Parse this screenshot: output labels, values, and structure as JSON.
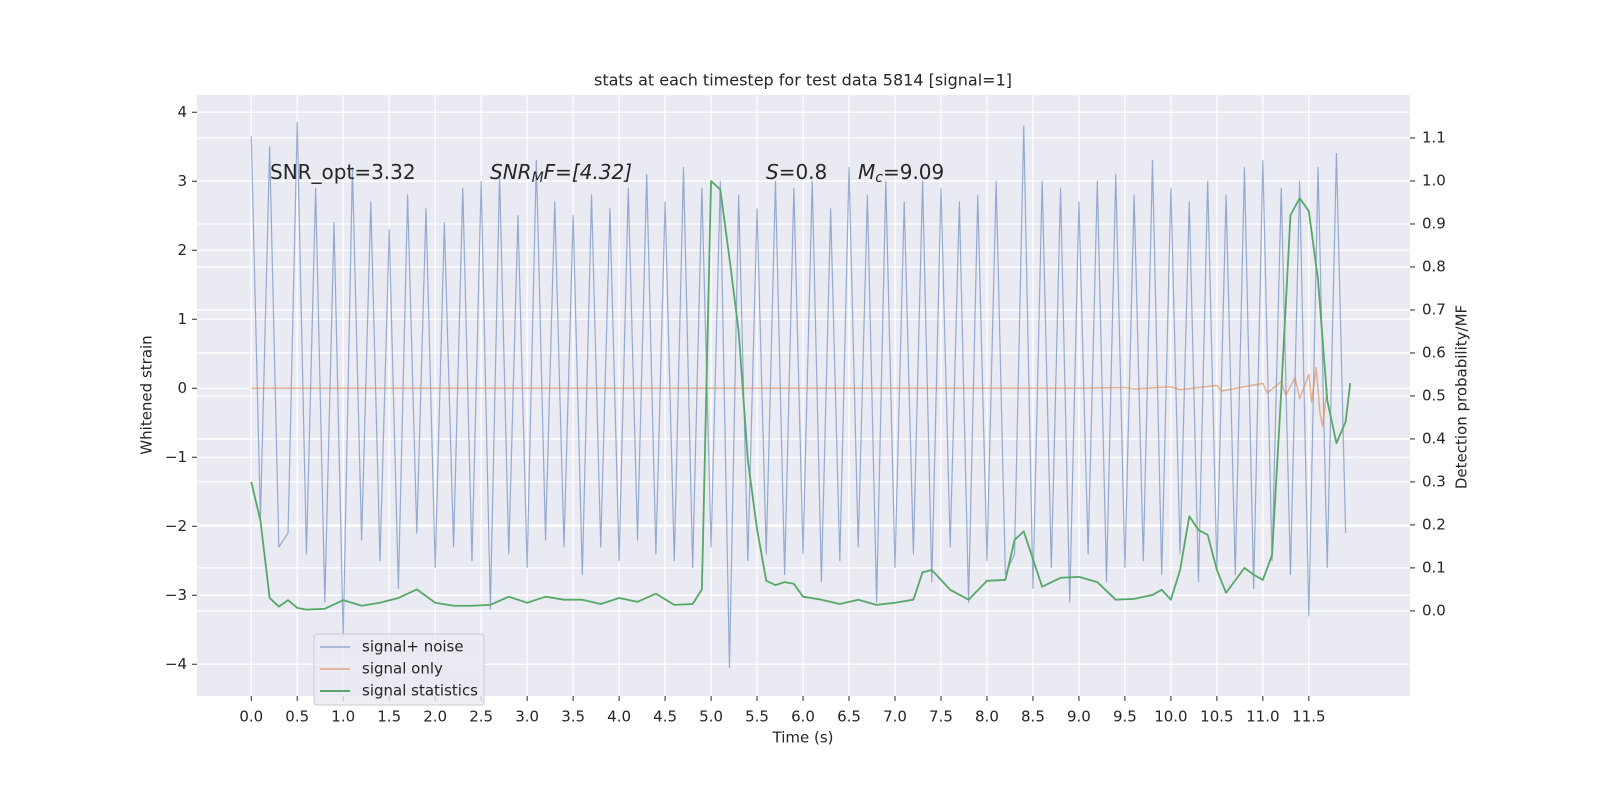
{
  "chart_data": {
    "type": "line",
    "title": "stats at each timestep for test data 5814 [signal=1]",
    "x_label": "Time (s)",
    "y_label": "Whitened strain",
    "y2_label": "Detection probability/MF",
    "annotations": [
      [
        "SNR_opt=3.32"
      ],
      [
        "SNR",
        "M",
        "F=[4.32]"
      ],
      [
        "S",
        "=0.8"
      ],
      [
        "M",
        "c",
        "=9.09"
      ]
    ],
    "xlim": [
      -0.59,
      12.6
    ],
    "ylim": [
      -4.46,
      4.25
    ],
    "y2lim": [
      -0.198,
      1.2
    ],
    "xticks": [
      {
        "value": 0,
        "label": "0.0"
      },
      0.5,
      {
        "value": 1,
        "label": "1.0"
      },
      1.5,
      {
        "value": 2,
        "label": "2.0"
      },
      2.5,
      {
        "value": 3,
        "label": "3.0"
      },
      3.5,
      {
        "value": 4,
        "label": "4.0"
      },
      4.5,
      {
        "value": 5,
        "label": "5.0"
      },
      5.5,
      {
        "value": 6,
        "label": "6.0"
      },
      6.5,
      {
        "value": 7,
        "label": "7.0"
      },
      7.5,
      {
        "value": 8,
        "label": "8.0"
      },
      8.5,
      {
        "value": 9,
        "label": "9.0"
      },
      9.5,
      {
        "value": 10,
        "label": "10.0"
      },
      10.5,
      {
        "value": 11,
        "label": "11.0"
      },
      11.5
    ],
    "yticks": [
      {
        "value": -4,
        "label": "−4"
      },
      {
        "value": -3,
        "label": "−3"
      },
      {
        "value": -2,
        "label": "−2"
      },
      {
        "value": -1,
        "label": "−1"
      },
      0,
      1,
      2,
      3,
      4
    ],
    "y2ticks": [
      {
        "value": 0,
        "label": "0.0"
      },
      0.1,
      0.2,
      0.3,
      0.4,
      0.5,
      0.6,
      0.7,
      0.8,
      0.9,
      {
        "value": 1,
        "label": "1.0"
      },
      1.1
    ],
    "grid": true,
    "legend": "lower left",
    "series": [
      {
        "name": "signal+ noise",
        "color": "#4c72b0",
        "x": [
          0.0,
          0.1,
          0.2,
          0.3,
          0.4,
          0.5,
          0.6,
          0.7,
          0.8,
          0.9,
          1.0,
          1.1,
          1.2,
          1.3,
          1.4,
          1.5,
          1.6,
          1.7,
          1.8,
          1.9,
          2.0,
          2.1,
          2.2,
          2.3,
          2.4,
          2.5,
          2.6,
          2.7,
          2.8,
          2.9,
          3.0,
          3.1,
          3.2,
          3.3,
          3.4,
          3.5,
          3.6,
          3.7,
          3.8,
          3.9,
          4.0,
          4.1,
          4.2,
          4.3,
          4.4,
          4.5,
          4.6,
          4.7,
          4.8,
          4.9,
          5.0,
          5.1,
          5.2,
          5.3,
          5.4,
          5.5,
          5.6,
          5.7,
          5.8,
          5.9,
          6.0,
          6.1,
          6.2,
          6.3,
          6.4,
          6.5,
          6.6,
          6.7,
          6.8,
          6.9,
          7.0,
          7.1,
          7.2,
          7.3,
          7.4,
          7.5,
          7.6,
          7.7,
          7.8,
          7.9,
          8.0,
          8.1,
          8.2,
          8.3,
          8.4,
          8.5,
          8.6,
          8.7,
          8.8,
          8.9,
          9.0,
          9.1,
          9.2,
          9.3,
          9.4,
          9.5,
          9.6,
          9.7,
          9.8,
          9.9,
          10.0,
          10.1,
          10.2,
          10.3,
          10.4,
          10.5,
          10.6,
          10.7,
          10.8,
          10.9,
          11.0,
          11.1,
          11.2,
          11.3,
          11.4,
          11.5,
          11.6,
          11.7,
          11.8,
          11.9
        ],
        "values": [
          3.65,
          -1.9,
          3.5,
          -2.3,
          -2.1,
          3.85,
          -2.4,
          2.9,
          -3.1,
          2.4,
          -3.6,
          3.2,
          -2.2,
          2.7,
          -2.5,
          2.3,
          -2.9,
          2.8,
          -2.1,
          2.6,
          -2.6,
          2.4,
          -2.3,
          2.9,
          -2.5,
          3.0,
          -3.2,
          3.1,
          -2.4,
          2.5,
          -2.6,
          3.3,
          -2.2,
          2.7,
          -2.3,
          2.5,
          -2.7,
          2.8,
          -2.3,
          2.6,
          -2.5,
          2.9,
          -2.2,
          3.1,
          -2.4,
          2.7,
          -2.5,
          3.2,
          -2.6,
          2.9,
          -2.3,
          3.0,
          -4.05,
          2.8,
          -2.5,
          2.6,
          -2.4,
          3.0,
          -2.7,
          2.9,
          -2.4,
          3.0,
          -2.8,
          2.6,
          -2.5,
          3.2,
          -2.3,
          2.8,
          -3.1,
          3.0,
          -2.6,
          2.7,
          -2.4,
          3.0,
          -2.8,
          2.9,
          -2.3,
          2.7,
          -3.1,
          2.8,
          -2.5,
          3.0,
          -2.7,
          -2.4,
          3.8,
          -2.9,
          3.0,
          -2.6,
          2.9,
          -3.1,
          2.7,
          -2.4,
          3.0,
          -2.8,
          3.1,
          -2.6,
          2.8,
          -2.5,
          3.3,
          -2.7,
          2.9,
          -2.4,
          2.7,
          -2.8,
          3.0,
          -2.6,
          2.8,
          -2.7,
          3.2,
          -2.9,
          3.3,
          -2.5,
          2.9,
          -2.7,
          3.0,
          -3.3,
          3.2,
          -2.6,
          3.4,
          -2.1
        ]
      },
      {
        "name": "signal only",
        "color": "#dd8452",
        "x": [
          0,
          9.0,
          9.5,
          9.6,
          10.0,
          10.1,
          10.5,
          10.55,
          11.0,
          11.05,
          11.2,
          11.25,
          11.35,
          11.4,
          11.5,
          11.53,
          11.58,
          11.62,
          11.65,
          11.7
        ],
        "values": [
          0,
          0,
          0.01,
          -0.01,
          0.02,
          -0.02,
          0.04,
          -0.04,
          0.07,
          -0.07,
          0.1,
          -0.1,
          0.15,
          -0.15,
          0.2,
          -0.2,
          0.3,
          -0.35,
          -0.55,
          0.0
        ]
      },
      {
        "name": "signal statistics",
        "color": "#55a868",
        "axis": "y2",
        "x": [
          0,
          0.1,
          0.2,
          0.3,
          0.4,
          0.5,
          0.6,
          0.8,
          1.0,
          1.2,
          1.4,
          1.6,
          1.8,
          2.0,
          2.2,
          2.4,
          2.6,
          2.8,
          3.0,
          3.2,
          3.4,
          3.6,
          3.8,
          4.0,
          4.2,
          4.4,
          4.6,
          4.8,
          4.9,
          5.0,
          5.1,
          5.2,
          5.3,
          5.4,
          5.5,
          5.6,
          5.7,
          5.8,
          5.9,
          6.0,
          6.2,
          6.4,
          6.6,
          6.8,
          7.0,
          7.2,
          7.3,
          7.4,
          7.6,
          7.8,
          8.0,
          8.2,
          8.3,
          8.4,
          8.6,
          8.8,
          9.0,
          9.2,
          9.4,
          9.6,
          9.8,
          9.9,
          10.0,
          10.1,
          10.2,
          10.3,
          10.4,
          10.5,
          10.6,
          10.8,
          10.9,
          11.0,
          11.1,
          11.2,
          11.3,
          11.4,
          11.5,
          11.6,
          11.7,
          11.8,
          11.9,
          11.95
        ],
        "values": [
          0.3,
          0.21,
          0.03,
          0.01,
          0.025,
          0.007,
          0.003,
          0.005,
          0.025,
          0.012,
          0.019,
          0.03,
          0.05,
          0.019,
          0.012,
          0.012,
          0.014,
          0.033,
          0.019,
          0.033,
          0.026,
          0.026,
          0.016,
          0.03,
          0.021,
          0.04,
          0.014,
          0.016,
          0.05,
          1.0,
          0.98,
          0.82,
          0.65,
          0.35,
          0.19,
          0.07,
          0.06,
          0.067,
          0.063,
          0.033,
          0.026,
          0.016,
          0.026,
          0.014,
          0.019,
          0.026,
          0.09,
          0.095,
          0.049,
          0.026,
          0.07,
          0.072,
          0.165,
          0.185,
          0.056,
          0.077,
          0.079,
          0.067,
          0.026,
          0.028,
          0.037,
          0.049,
          0.026,
          0.095,
          0.22,
          0.188,
          0.177,
          0.095,
          0.042,
          0.1,
          0.084,
          0.072,
          0.13,
          0.51,
          0.92,
          0.96,
          0.93,
          0.77,
          0.49,
          0.39,
          0.44,
          0.53
        ]
      }
    ]
  }
}
